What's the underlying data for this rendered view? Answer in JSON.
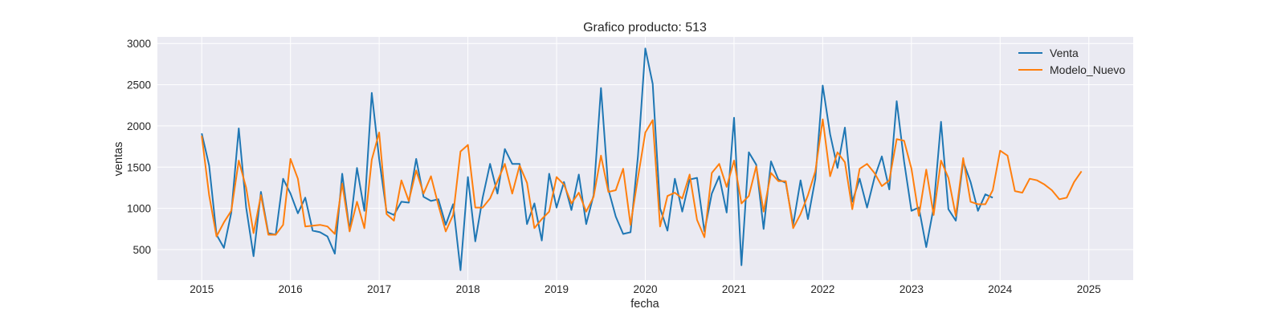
{
  "chart_data": {
    "type": "line",
    "title": "Grafico producto: 513",
    "xlabel": "fecha",
    "ylabel": "ventas",
    "xlim": [
      "2014-07-01",
      "2025-07-01"
    ],
    "ylim": [
      130,
      3080
    ],
    "x_ticks": [
      "2015",
      "2016",
      "2017",
      "2018",
      "2019",
      "2020",
      "2021",
      "2022",
      "2023",
      "2024",
      "2025"
    ],
    "y_ticks": [
      500,
      1000,
      1500,
      2000,
      2500,
      3000
    ],
    "grid": true,
    "legend_position": "top-right",
    "background": "#eaeaf2",
    "series": [
      {
        "name": "Venta",
        "color": "#1f77b4",
        "x_start": "2015-01",
        "frequency": "monthly",
        "values": [
          1910,
          1520,
          680,
          520,
          950,
          1970,
          1010,
          420,
          1200,
          700,
          680,
          1360,
          1180,
          940,
          1130,
          730,
          710,
          660,
          450,
          1420,
          730,
          1490,
          970,
          2400,
          1600,
          960,
          920,
          1080,
          1070,
          1600,
          1140,
          1090,
          1110,
          800,
          1050,
          250,
          1380,
          600,
          1130,
          1540,
          1180,
          1720,
          1540,
          1540,
          810,
          1060,
          610,
          1420,
          1010,
          1320,
          980,
          1410,
          810,
          1160,
          2460,
          1230,
          900,
          690,
          710,
          1630,
          2940,
          2510,
          1000,
          730,
          1360,
          960,
          1350,
          1370,
          720,
          1180,
          1390,
          950,
          2100,
          310,
          1680,
          1530,
          750,
          1570,
          1350,
          1310,
          800,
          1340,
          870,
          1360,
          2490,
          1900,
          1490,
          1980,
          1080,
          1360,
          1010,
          1370,
          1630,
          1230,
          2300,
          1570,
          970,
          1010,
          530,
          1010,
          2050,
          990,
          850,
          1570,
          1320,
          970,
          1170,
          1130
        ]
      },
      {
        "name": "Modelo_Nuevo",
        "color": "#ff7f0e",
        "x_start": "2015-01",
        "frequency": "monthly",
        "values": [
          1880,
          1160,
          660,
          830,
          970,
          1580,
          1250,
          700,
          1160,
          680,
          680,
          800,
          1600,
          1360,
          780,
          790,
          800,
          780,
          690,
          1300,
          720,
          1080,
          760,
          1590,
          1920,
          930,
          850,
          1340,
          1090,
          1460,
          1180,
          1390,
          1040,
          720,
          920,
          1690,
          1770,
          1010,
          1010,
          1120,
          1330,
          1540,
          1180,
          1520,
          1310,
          760,
          870,
          960,
          1380,
          1290,
          1060,
          1190,
          960,
          1140,
          1640,
          1200,
          1220,
          1480,
          800,
          1370,
          1920,
          2070,
          780,
          1150,
          1190,
          1120,
          1410,
          860,
          650,
          1430,
          1540,
          1260,
          1580,
          1060,
          1150,
          1510,
          960,
          1430,
          1330,
          1330,
          760,
          930,
          1160,
          1450,
          2080,
          1390,
          1680,
          1560,
          990,
          1480,
          1540,
          1430,
          1270,
          1340,
          1840,
          1820,
          1480,
          910,
          1470,
          920,
          1580,
          1370,
          910,
          1610,
          1080,
          1050,
          1050,
          1220,
          1700,
          1640,
          1210,
          1190,
          1360,
          1340,
          1290,
          1220,
          1110,
          1130,
          1320,
          1450
        ]
      }
    ]
  }
}
